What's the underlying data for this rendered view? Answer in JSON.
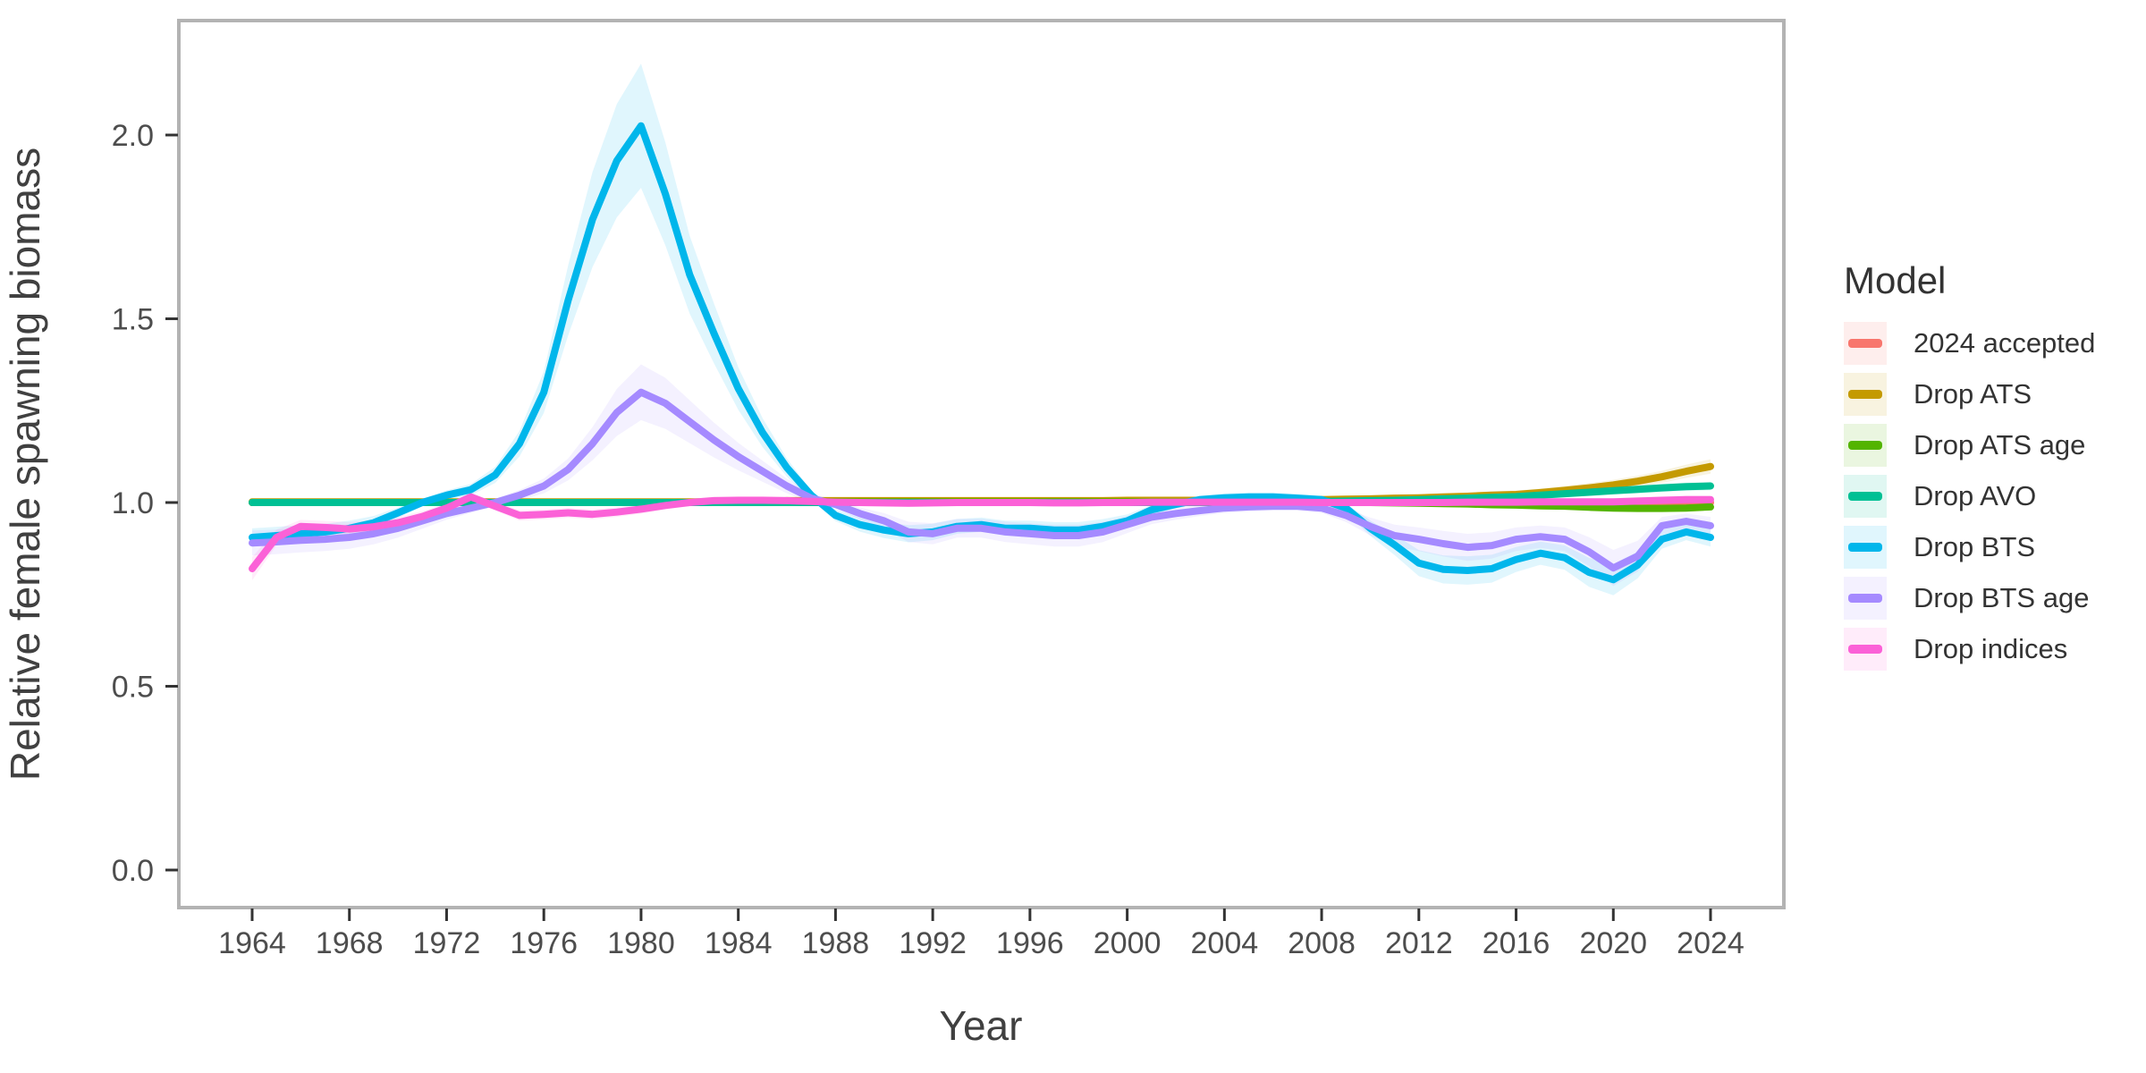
{
  "figure": {
    "background": "#FFFFFF",
    "panel_border_color": "#B3B3B3",
    "tick_color": "#333333",
    "axis_text_color": "#4D4D4D",
    "axis_title_color": "#404040",
    "legend_text_color": "#333333",
    "ribbon_opacity": 0.12
  },
  "chart_data": {
    "type": "line",
    "title": "",
    "xlabel": "Year",
    "ylabel": "Relative female spawning biomass",
    "legend_title": "Model",
    "legend_position": "right",
    "grid": "off",
    "xlim": [
      1961,
      2027
    ],
    "ylim": [
      0.0,
      2.3
    ],
    "x_ticks": [
      1964,
      1968,
      1972,
      1976,
      1980,
      1984,
      1988,
      1992,
      1996,
      2000,
      2004,
      2008,
      2012,
      2016,
      2020,
      2024
    ],
    "y_ticks": [
      "0.0",
      "0.5",
      "1.0",
      "1.5",
      "2.0"
    ],
    "y_tick_values": [
      0.0,
      0.5,
      1.0,
      1.5,
      2.0
    ],
    "x": [
      1964,
      1965,
      1966,
      1967,
      1968,
      1969,
      1970,
      1971,
      1972,
      1973,
      1974,
      1975,
      1976,
      1977,
      1978,
      1979,
      1980,
      1981,
      1982,
      1983,
      1984,
      1985,
      1986,
      1987,
      1988,
      1989,
      1990,
      1991,
      1992,
      1993,
      1994,
      1995,
      1996,
      1997,
      1998,
      1999,
      2000,
      2001,
      2002,
      2003,
      2004,
      2005,
      2006,
      2007,
      2008,
      2009,
      2010,
      2011,
      2012,
      2013,
      2014,
      2015,
      2016,
      2017,
      2018,
      2019,
      2020,
      2021,
      2022,
      2023,
      2024
    ],
    "series": [
      {
        "name": "2024 accepted",
        "color": "#F8766D",
        "ribbon_base": 0.008,
        "ribbon_k": 0.04,
        "values": [
          1.0,
          1.0,
          1.0,
          1.0,
          1.0,
          1.0,
          1.0,
          1.0,
          1.0,
          1.0,
          1.0,
          1.0,
          1.0,
          1.0,
          1.0,
          1.0,
          1.0,
          1.0,
          1.0,
          1.0,
          1.0,
          1.0,
          1.0,
          1.0,
          1.0,
          1.0,
          1.0,
          1.0,
          1.0,
          1.0,
          1.0,
          1.0,
          1.0,
          1.0,
          1.0,
          1.0,
          1.0,
          1.0,
          1.0,
          1.0,
          1.0,
          1.0,
          1.0,
          1.0,
          1.0,
          1.0,
          1.0,
          1.0,
          1.0,
          1.0,
          1.0,
          1.0,
          1.0,
          1.0,
          1.0,
          1.0,
          1.0,
          1.0,
          1.0,
          1.0,
          1.0
        ]
      },
      {
        "name": "Drop ATS",
        "color": "#C49A00",
        "ribbon_base": 0.008,
        "ribbon_k": 0.12,
        "values": [
          1.002,
          1.002,
          1.002,
          1.002,
          1.002,
          1.002,
          1.002,
          1.002,
          1.002,
          1.002,
          1.002,
          1.002,
          1.002,
          1.002,
          1.002,
          1.002,
          1.002,
          1.002,
          1.002,
          1.002,
          1.002,
          1.002,
          1.005,
          1.005,
          1.005,
          1.005,
          1.005,
          1.005,
          1.005,
          1.005,
          1.005,
          1.005,
          1.005,
          1.005,
          1.005,
          1.005,
          1.006,
          1.006,
          1.006,
          1.006,
          1.006,
          1.006,
          1.006,
          1.006,
          1.008,
          1.009,
          1.01,
          1.012,
          1.013,
          1.015,
          1.017,
          1.02,
          1.022,
          1.027,
          1.033,
          1.04,
          1.048,
          1.058,
          1.07,
          1.085,
          1.098
        ]
      },
      {
        "name": "Drop ATS age",
        "color": "#53B400",
        "ribbon_base": 0.008,
        "ribbon_k": 0.1,
        "values": [
          1.0,
          1.0,
          1.0,
          1.0,
          1.0,
          1.0,
          1.0,
          1.0,
          1.0,
          1.0,
          1.0,
          1.0,
          1.0,
          1.0,
          1.0,
          1.0,
          1.0,
          1.0,
          1.0,
          1.0,
          1.0,
          1.0,
          1.002,
          1.002,
          1.002,
          1.002,
          1.002,
          1.002,
          1.002,
          1.002,
          1.002,
          1.002,
          1.002,
          1.002,
          1.002,
          1.002,
          1.002,
          1.002,
          1.002,
          1.002,
          1.002,
          1.002,
          1.002,
          1.002,
          1.002,
          1.002,
          1.0,
          0.999,
          0.998,
          0.997,
          0.996,
          0.994,
          0.993,
          0.991,
          0.99,
          0.987,
          0.985,
          0.984,
          0.984,
          0.985,
          0.988
        ]
      },
      {
        "name": "Drop AVO",
        "color": "#00C094",
        "ribbon_base": 0.008,
        "ribbon_k": 0.08,
        "values": [
          1.0,
          1.0,
          1.0,
          1.0,
          1.0,
          1.0,
          1.0,
          1.0,
          1.0,
          1.0,
          1.0,
          1.0,
          1.0,
          1.0,
          1.0,
          1.0,
          1.0,
          1.0,
          1.0,
          1.0,
          1.0,
          1.0,
          1.0,
          1.0,
          1.0,
          1.0,
          1.0,
          1.0,
          1.0,
          1.0,
          1.0,
          1.0,
          1.0,
          1.0,
          1.0,
          1.0,
          1.0,
          1.0,
          1.0,
          1.0,
          1.0,
          1.0,
          1.001,
          1.002,
          1.003,
          1.004,
          1.005,
          1.006,
          1.008,
          1.01,
          1.012,
          1.014,
          1.016,
          1.02,
          1.024,
          1.028,
          1.032,
          1.036,
          1.04,
          1.043,
          1.045
        ]
      },
      {
        "name": "Drop BTS",
        "color": "#00B6EB",
        "ribbon_base": 0.01,
        "ribbon_k": 0.155,
        "values": [
          0.905,
          0.91,
          0.915,
          0.92,
          0.93,
          0.945,
          0.972,
          1.0,
          1.02,
          1.035,
          1.075,
          1.16,
          1.3,
          1.55,
          1.77,
          1.93,
          2.025,
          1.84,
          1.62,
          1.46,
          1.31,
          1.19,
          1.095,
          1.02,
          0.965,
          0.94,
          0.925,
          0.915,
          0.92,
          0.935,
          0.94,
          0.93,
          0.93,
          0.925,
          0.925,
          0.935,
          0.95,
          0.98,
          0.995,
          1.008,
          1.013,
          1.015,
          1.015,
          1.012,
          1.008,
          0.985,
          0.93,
          0.885,
          0.835,
          0.818,
          0.815,
          0.82,
          0.845,
          0.862,
          0.85,
          0.81,
          0.79,
          0.83,
          0.9,
          0.92,
          0.905
        ]
      },
      {
        "name": "Drop BTS age",
        "color": "#A58AFF",
        "ribbon_base": 0.01,
        "ribbon_k": 0.22,
        "values": [
          0.89,
          0.893,
          0.897,
          0.9,
          0.905,
          0.915,
          0.93,
          0.95,
          0.97,
          0.985,
          1.0,
          1.02,
          1.045,
          1.09,
          1.16,
          1.245,
          1.3,
          1.27,
          1.22,
          1.17,
          1.125,
          1.085,
          1.045,
          1.012,
          0.995,
          0.97,
          0.95,
          0.92,
          0.915,
          0.93,
          0.93,
          0.92,
          0.915,
          0.91,
          0.91,
          0.92,
          0.94,
          0.96,
          0.97,
          0.978,
          0.985,
          0.988,
          0.99,
          0.99,
          0.985,
          0.965,
          0.935,
          0.91,
          0.9,
          0.888,
          0.878,
          0.883,
          0.9,
          0.907,
          0.9,
          0.866,
          0.822,
          0.854,
          0.937,
          0.949,
          0.937
        ]
      },
      {
        "name": "Drop indices",
        "color": "#FB61D7",
        "ribbon_base": 0.01,
        "ribbon_k": 0.12,
        "values": [
          0.82,
          0.905,
          0.935,
          0.932,
          0.928,
          0.934,
          0.945,
          0.962,
          0.985,
          1.015,
          0.99,
          0.965,
          0.968,
          0.972,
          0.968,
          0.974,
          0.982,
          0.992,
          1.0,
          1.005,
          1.006,
          1.006,
          1.005,
          1.003,
          1.001,
          1.0,
          0.999,
          0.998,
          0.999,
          1.0,
          1.0,
          1.0,
          1.0,
          0.999,
          0.999,
          1.0,
          1.0,
          1.001,
          1.001,
          1.001,
          1.001,
          1.001,
          1.001,
          1.001,
          1.0,
          1.0,
          1.0,
          1.0,
          1.0,
          1.0,
          1.001,
          1.001,
          1.001,
          1.002,
          1.002,
          1.002,
          1.002,
          1.004,
          1.006,
          1.008,
          1.008
        ]
      }
    ]
  }
}
